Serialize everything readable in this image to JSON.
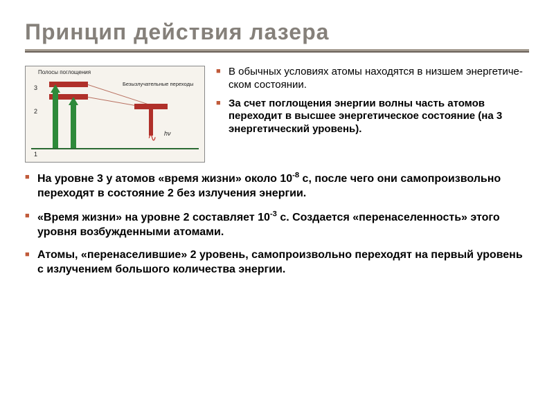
{
  "colors": {
    "title": "#85807a",
    "underline_top": "#a39a8f",
    "underline_bottom": "#6b625a",
    "bullet_square": "#c05a3a",
    "text": "#000000",
    "diagram_bg": "#f6f3ed",
    "diagram_border": "#888888",
    "red_bar": "#b0302a",
    "green_arrow": "#2e8a3a",
    "thin_line": "#b87060",
    "baseline": "#2a6a32",
    "wave_red": "#c03028"
  },
  "title": "Принцип действия лазера",
  "diagram": {
    "label_top": "Полосы поглощения",
    "label_right": "Безызлучательные\nпереходы",
    "numbers": [
      "3",
      "2",
      "1"
    ],
    "hv": "hν"
  },
  "top_bullets": [
    "В обычных условиях атомы находятся в низшем энергетиче-ском состоянии.",
    "За счет поглощения энергии волны часть атомов переходит в высшее энергетическое состояние (на 3 энергетический уровень)."
  ],
  "bottom_bullets": [
    {
      "plain": "На уровне 3 у атомов «время жизни» около 10",
      "sup": "-8",
      "tail": " с, после чего они самопроизвольно переходят в состояние 2 без излучения энергии."
    },
    {
      "plain": "«Время жизни» на уровне 2 составляет 10",
      "sup": "-3",
      "tail": " с. Создается «перенаселенность» этого уровня возбужденными атомами."
    },
    {
      "plain": "Атомы, «перенаселившие» 2 уровень,  самопроизвольно переходят на первый уровень с излучением большого количества энергии.",
      "sup": "",
      "tail": ""
    }
  ]
}
